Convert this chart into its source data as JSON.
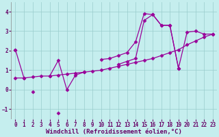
{
  "background_color": "#c5eeee",
  "line_color": "#990099",
  "marker": "D",
  "markersize": 2.5,
  "linewidth": 0.9,
  "xlabel": "Windchill (Refroidissement éolien,°C)",
  "xlabel_fontsize": 6.5,
  "tick_fontsize": 5.5,
  "grid_color": "#99cccc",
  "ylim": [
    -1.5,
    4.5
  ],
  "xlim": [
    -0.5,
    23.5
  ],
  "yticks": [
    -1,
    0,
    1,
    2,
    3,
    4
  ],
  "xticks": [
    0,
    1,
    2,
    3,
    4,
    5,
    6,
    7,
    8,
    9,
    10,
    11,
    12,
    13,
    14,
    15,
    16,
    17,
    18,
    19,
    20,
    21,
    22,
    23
  ],
  "line1": {
    "x": [
      0,
      1,
      2,
      3,
      4,
      5,
      6,
      7,
      8,
      9,
      10,
      11,
      12,
      13,
      14,
      15,
      16,
      17,
      18,
      19,
      20,
      21,
      22,
      23
    ],
    "y": [
      0.6,
      0.6,
      0.65,
      0.7,
      0.7,
      0.75,
      0.8,
      0.85,
      0.9,
      0.95,
      1.0,
      1.1,
      1.2,
      1.3,
      1.4,
      1.5,
      1.6,
      1.75,
      1.9,
      2.05,
      2.3,
      2.5,
      2.7,
      2.85
    ]
  },
  "line2": {
    "x": [
      0,
      1,
      2,
      3,
      4,
      5,
      6,
      7,
      8,
      9,
      10,
      11,
      12,
      13,
      14,
      15,
      16,
      17,
      18,
      19,
      20,
      21,
      22,
      23
    ],
    "y": [
      2.05,
      0.6,
      null,
      null,
      0.7,
      1.5,
      0.0,
      0.75,
      0.9,
      null,
      1.55,
      1.6,
      1.75,
      1.9,
      2.45,
      3.9,
      3.85,
      3.3,
      3.3,
      1.1,
      null,
      null,
      null,
      null
    ]
  },
  "line3": {
    "x": [
      0,
      1,
      2,
      3,
      4,
      5,
      6,
      7,
      8,
      9,
      10,
      11,
      12,
      13,
      14,
      15,
      16,
      17,
      18,
      19,
      20,
      21,
      22,
      23
    ],
    "y": [
      2.05,
      null,
      -0.1,
      null,
      null,
      -1.2,
      null,
      null,
      null,
      null,
      null,
      null,
      1.3,
      1.45,
      1.6,
      3.55,
      3.85,
      3.3,
      3.3,
      1.1,
      2.95,
      3.0,
      2.85,
      2.85
    ]
  }
}
